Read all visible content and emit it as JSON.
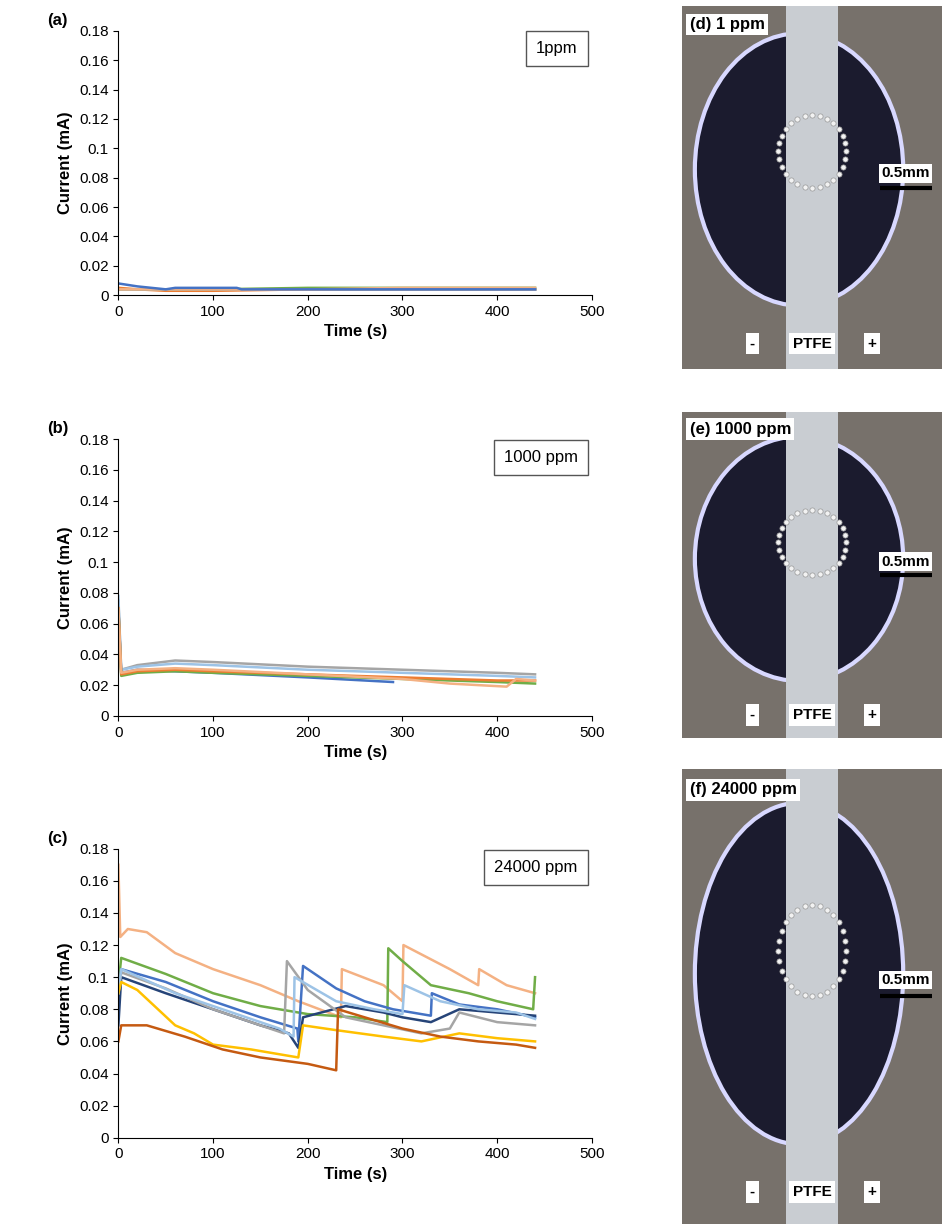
{
  "chart_data": [
    {
      "type": "line",
      "title": "(a)",
      "annotations": [
        "1ppm"
      ],
      "x_label": "Time (s)",
      "y_label": "Current (mA)",
      "xlim": [
        0,
        500
      ],
      "xticks": [
        0,
        100,
        200,
        300,
        400,
        500
      ],
      "ylim": [
        0,
        0.18
      ],
      "yticks": [
        0,
        0.02,
        0.04,
        0.06,
        0.08,
        0.1,
        0.12,
        0.14,
        0.16,
        0.18
      ],
      "grid": false,
      "series": [
        {
          "color": "#ED7D31",
          "x": [
            0,
            20,
            50,
            100,
            200,
            300,
            440
          ],
          "values": [
            0.005,
            0.004,
            0.003,
            0.003,
            0.004,
            0.004,
            0.004
          ]
        },
        {
          "color": "#70AD47",
          "x": [
            0,
            20,
            50,
            100,
            200,
            300,
            440
          ],
          "values": [
            0.004,
            0.004,
            0.004,
            0.004,
            0.005,
            0.005,
            0.005
          ]
        },
        {
          "color": "#A5A5A5",
          "x": [
            0,
            20,
            50,
            100,
            200,
            300,
            440
          ],
          "values": [
            0.004,
            0.004,
            0.004,
            0.004,
            0.004,
            0.004,
            0.004
          ]
        },
        {
          "color": "#F4B183",
          "x": [
            0,
            20,
            50,
            100,
            200,
            300,
            440
          ],
          "values": [
            0.004,
            0.004,
            0.004,
            0.004,
            0.004,
            0.005,
            0.005
          ]
        },
        {
          "color": "#4472C4",
          "x": [
            0,
            20,
            50,
            60,
            100,
            125,
            130,
            200,
            300,
            440
          ],
          "values": [
            0.008,
            0.006,
            0.004,
            0.005,
            0.005,
            0.005,
            0.004,
            0.004,
            0.004,
            0.004
          ]
        }
      ]
    },
    {
      "type": "line",
      "title": "(b)",
      "annotations": [
        "1000 ppm"
      ],
      "x_label": "Time (s)",
      "y_label": "Current (mA)",
      "xlim": [
        0,
        500
      ],
      "xticks": [
        0,
        100,
        200,
        300,
        400,
        500
      ],
      "ylim": [
        0,
        0.18
      ],
      "yticks": [
        0,
        0.02,
        0.04,
        0.06,
        0.08,
        0.1,
        0.12,
        0.14,
        0.16,
        0.18
      ],
      "grid": false,
      "series": [
        {
          "color": "#A5A5A5",
          "x": [
            0,
            3,
            20,
            60,
            100,
            200,
            300,
            350,
            400,
            440
          ],
          "values": [
            0.075,
            0.03,
            0.033,
            0.036,
            0.035,
            0.032,
            0.03,
            0.029,
            0.028,
            0.027
          ]
        },
        {
          "color": "#9DC3E6",
          "x": [
            0,
            3,
            20,
            60,
            100,
            200,
            300,
            350,
            400,
            440
          ],
          "values": [
            0.078,
            0.03,
            0.032,
            0.034,
            0.033,
            0.03,
            0.028,
            0.027,
            0.026,
            0.025
          ]
        },
        {
          "color": "#4472C4",
          "x": [
            0,
            3,
            20,
            60,
            100,
            200,
            290
          ],
          "values": [
            0.07,
            0.028,
            0.03,
            0.029,
            0.028,
            0.025,
            0.022
          ]
        },
        {
          "color": "#70AD47",
          "x": [
            0,
            3,
            20,
            60,
            100,
            200,
            300,
            350,
            400,
            440
          ],
          "values": [
            0.07,
            0.026,
            0.028,
            0.029,
            0.028,
            0.026,
            0.024,
            0.023,
            0.022,
            0.021
          ]
        },
        {
          "color": "#ED7D31",
          "x": [
            0,
            3,
            20,
            60,
            100,
            200,
            300,
            350,
            400,
            440
          ],
          "values": [
            0.07,
            0.027,
            0.029,
            0.03,
            0.029,
            0.027,
            0.025,
            0.024,
            0.023,
            0.023
          ]
        },
        {
          "color": "#F4B183",
          "x": [
            0,
            3,
            20,
            60,
            100,
            200,
            300,
            350,
            410,
            420,
            440
          ],
          "values": [
            0.07,
            0.028,
            0.03,
            0.031,
            0.03,
            0.027,
            0.024,
            0.021,
            0.019,
            0.024,
            0.023
          ]
        }
      ]
    },
    {
      "type": "line",
      "title": "(c)",
      "annotations": [
        "24000 ppm"
      ],
      "x_label": "Time (s)",
      "y_label": "Current (mA)",
      "xlim": [
        0,
        500
      ],
      "xticks": [
        0,
        100,
        200,
        300,
        400,
        500
      ],
      "ylim": [
        0,
        0.18
      ],
      "yticks": [
        0,
        0.02,
        0.04,
        0.06,
        0.08,
        0.1,
        0.12,
        0.14,
        0.16,
        0.18
      ],
      "grid": false,
      "series": [
        {
          "color": "#F4B183",
          "x": [
            0,
            2,
            10,
            30,
            60,
            100,
            150,
            190,
            235,
            236,
            280,
            300,
            301,
            350,
            380,
            381,
            410,
            440
          ],
          "values": [
            0.17,
            0.125,
            0.13,
            0.128,
            0.115,
            0.105,
            0.095,
            0.085,
            0.075,
            0.105,
            0.095,
            0.085,
            0.12,
            0.105,
            0.095,
            0.105,
            0.095,
            0.09
          ]
        },
        {
          "color": "#70AD47",
          "x": [
            0,
            3,
            50,
            100,
            150,
            200,
            250,
            284,
            285,
            300,
            330,
            370,
            400,
            438,
            440
          ],
          "values": [
            0.095,
            0.112,
            0.102,
            0.09,
            0.082,
            0.077,
            0.075,
            0.072,
            0.118,
            0.11,
            0.095,
            0.09,
            0.085,
            0.08,
            0.1
          ]
        },
        {
          "color": "#4472C4",
          "x": [
            0,
            3,
            50,
            100,
            150,
            189,
            190,
            195,
            230,
            260,
            290,
            330,
            331,
            360,
            400,
            440
          ],
          "values": [
            0.08,
            0.105,
            0.097,
            0.085,
            0.075,
            0.068,
            0.06,
            0.107,
            0.093,
            0.085,
            0.08,
            0.076,
            0.09,
            0.083,
            0.08,
            0.075
          ]
        },
        {
          "color": "#264478",
          "x": [
            0,
            3,
            50,
            100,
            150,
            180,
            190,
            195,
            240,
            280,
            300,
            330,
            360,
            400,
            440
          ],
          "values": [
            0.07,
            0.1,
            0.09,
            0.08,
            0.07,
            0.065,
            0.056,
            0.075,
            0.082,
            0.078,
            0.075,
            0.072,
            0.08,
            0.078,
            0.076
          ]
        },
        {
          "color": "#A5A5A5",
          "x": [
            0,
            3,
            50,
            100,
            150,
            175,
            178,
            200,
            240,
            280,
            320,
            350,
            360,
            400,
            440
          ],
          "values": [
            0.09,
            0.103,
            0.093,
            0.08,
            0.07,
            0.065,
            0.11,
            0.092,
            0.075,
            0.07,
            0.065,
            0.068,
            0.078,
            0.072,
            0.07
          ]
        },
        {
          "color": "#9DC3E6",
          "x": [
            0,
            3,
            60,
            120,
            170,
            185,
            186,
            230,
            270,
            300,
            302,
            340,
            380,
            420,
            440
          ],
          "values": [
            0.09,
            0.105,
            0.09,
            0.078,
            0.068,
            0.063,
            0.1,
            0.085,
            0.08,
            0.077,
            0.095,
            0.085,
            0.08,
            0.078,
            0.074
          ]
        },
        {
          "color": "#FFC000",
          "x": [
            0,
            3,
            20,
            60,
            80,
            100,
            140,
            190,
            195,
            230,
            280,
            320,
            360,
            400,
            440
          ],
          "values": [
            0.09,
            0.097,
            0.092,
            0.07,
            0.065,
            0.058,
            0.055,
            0.05,
            0.07,
            0.067,
            0.063,
            0.06,
            0.065,
            0.062,
            0.06
          ]
        },
        {
          "color": "#C55A11",
          "x": [
            0,
            3,
            30,
            70,
            110,
            150,
            200,
            230,
            232,
            260,
            300,
            340,
            380,
            420,
            440
          ],
          "values": [
            0.06,
            0.07,
            0.07,
            0.063,
            0.055,
            0.05,
            0.046,
            0.042,
            0.08,
            0.075,
            0.068,
            0.063,
            0.06,
            0.058,
            0.056
          ]
        }
      ]
    }
  ],
  "images": [
    {
      "label": "(d) 1 ppm",
      "scale_bar": "0.5mm",
      "electrodes": [
        "-",
        "PTFE",
        "+"
      ]
    },
    {
      "label": "(e) 1000 ppm",
      "scale_bar": "0.5mm",
      "electrodes": [
        "-",
        "PTFE",
        "+"
      ]
    },
    {
      "label": "(f) 24000 ppm",
      "scale_bar": "0.5mm",
      "electrodes": [
        "-",
        "PTFE",
        "+"
      ]
    }
  ]
}
